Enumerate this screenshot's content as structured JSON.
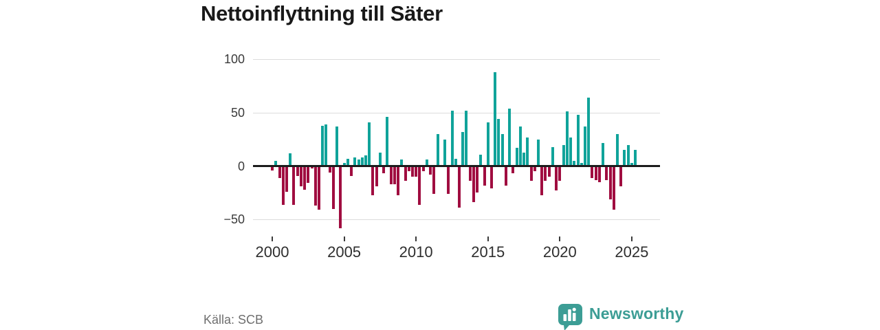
{
  "title": "Nettoinflyttning till Säter",
  "source": "Källa: SCB",
  "branding": {
    "name": "Newsworthy"
  },
  "colors": {
    "positive": "#10a39a",
    "negative": "#a00d40",
    "brand": "#3c9d95",
    "grid": "#dcdcdc",
    "axis": "#1c1c1c",
    "tick": "#3a3a3a"
  },
  "chart_data": {
    "type": "bar",
    "title": "Nettoinflyttning till Säter",
    "frequency": "quarterly",
    "start_period": "2000-Q1",
    "end_period": "2025-Q2",
    "ylim": [
      -62,
      102
    ],
    "grid": "horizontal",
    "y_ticks": [
      {
        "label": "100",
        "value": 100
      },
      {
        "label": "50",
        "value": 50
      },
      {
        "label": "0",
        "value": 0
      },
      {
        "label": "−50",
        "value": -50
      }
    ],
    "x_ticks": [
      {
        "label": "2000",
        "q": 0
      },
      {
        "label": "2005",
        "q": 20
      },
      {
        "label": "2010",
        "q": 40
      },
      {
        "label": "2015",
        "q": 60
      },
      {
        "label": "2020",
        "q": 80
      },
      {
        "label": "2025",
        "q": 100
      }
    ],
    "values": [
      -3,
      5,
      -10,
      -35,
      -23,
      12,
      -35,
      -8,
      -18,
      -21,
      -15,
      -1,
      -36,
      -40,
      38,
      39,
      -5,
      -39,
      37,
      -57,
      3,
      7,
      -8,
      8,
      6,
      8,
      10,
      41,
      -26,
      -18,
      13,
      -6,
      46,
      -16,
      -16,
      -26,
      6,
      -13,
      -4,
      -9,
      -9,
      -35,
      -4,
      6,
      -7,
      -25,
      30,
      0,
      25,
      -25,
      52,
      7,
      -38,
      32,
      52,
      -13,
      -33,
      -24,
      11,
      -17,
      41,
      -20,
      88,
      44,
      30,
      -17,
      54,
      -6,
      17,
      37,
      13,
      27,
      -13,
      -4,
      25,
      -26,
      -13,
      -9,
      18,
      -22,
      -13,
      20,
      51,
      27,
      5,
      48,
      3,
      37,
      64,
      -10,
      -12,
      -14,
      22,
      -12,
      -30,
      -40,
      30,
      -18,
      15,
      20,
      3,
      15
    ]
  }
}
